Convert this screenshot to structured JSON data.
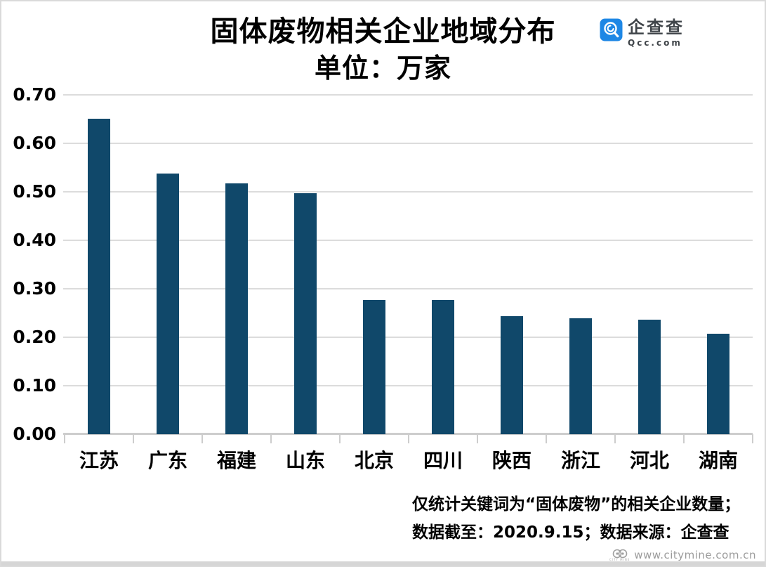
{
  "title": {
    "line1": "固体废物相关企业地域分布",
    "line2": "单位：万家"
  },
  "logo": {
    "name": "企查查",
    "domain": "Qcc.com",
    "brand_color": "#1e87e5"
  },
  "chart_data": {
    "type": "bar",
    "title": "固体废物相关企业地域分布",
    "subtitle": "单位：万家",
    "unit": "万家",
    "categories": [
      "江苏",
      "广东",
      "福建",
      "山东",
      "北京",
      "四川",
      "陕西",
      "浙江",
      "河北",
      "湖南"
    ],
    "values": [
      0.651,
      0.538,
      0.517,
      0.497,
      0.277,
      0.277,
      0.243,
      0.239,
      0.236,
      0.207
    ],
    "ylim": [
      0,
      0.7
    ],
    "ytick_step": 0.1,
    "ytick_labels": [
      "0.70",
      "0.60",
      "0.50",
      "0.40",
      "0.30",
      "0.20",
      "0.10",
      "0.00"
    ],
    "grid": true,
    "legend": false,
    "bar_color": "#10486a",
    "grid_color": "#dcdcdc",
    "axis_color": "#cdcdcd"
  },
  "footnote": {
    "line1": "仅统计关键词为“固体废物”的相关企业数量；",
    "line2": "数据截至：2020.9.15；数据来源：企查查"
  },
  "watermark": {
    "text": "www.citymine.com.cn",
    "logo_caption": "CITY MINE"
  }
}
